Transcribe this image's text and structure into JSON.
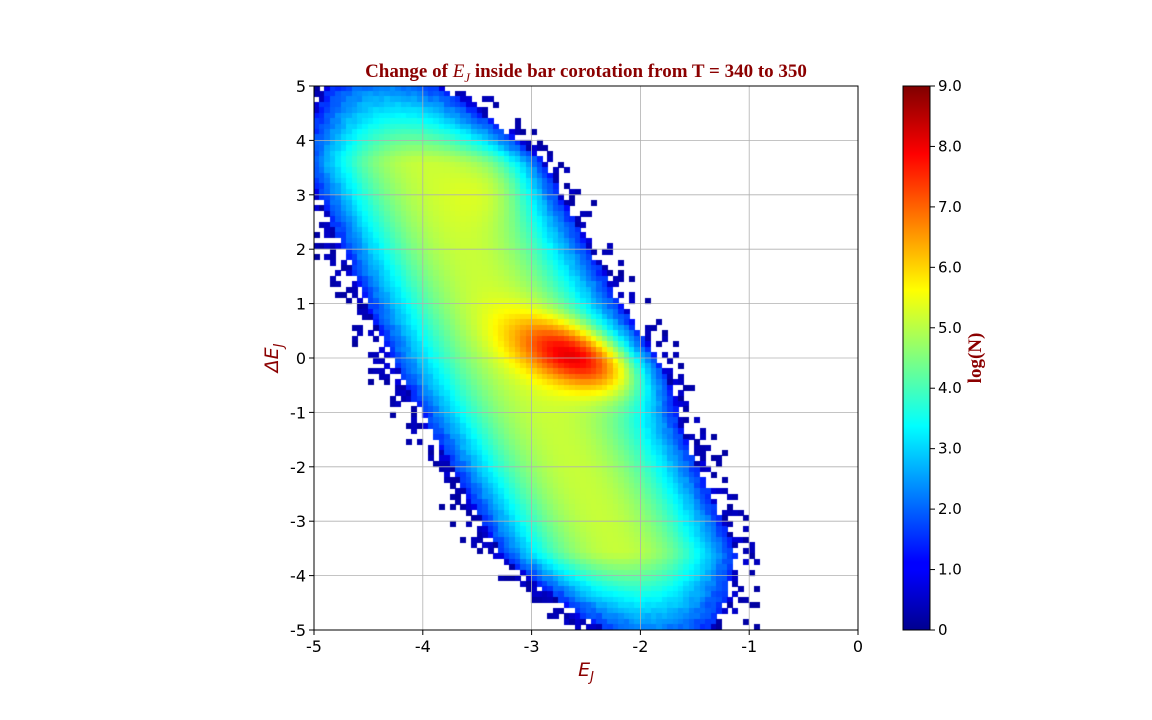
{
  "chart_data": {
    "type": "heatmap",
    "title_prefix": "Change of ",
    "title_var": "E",
    "title_sub": "J",
    "title_suffix": " inside bar corotation from T = 340 to 350",
    "xlabel_var": "E",
    "xlabel_sub": "J",
    "ylabel_var": "ΔE",
    "ylabel_sub": "J",
    "xlim": [
      -5,
      0
    ],
    "ylim": [
      -5,
      5
    ],
    "x_ticks": [
      "-5",
      "-4",
      "-3",
      "-2",
      "-1",
      "0"
    ],
    "y_ticks": [
      "-5",
      "-4",
      "-3",
      "-2",
      "-1",
      "0",
      "1",
      "2",
      "3",
      "4",
      "5"
    ],
    "grid": true,
    "colorbar": {
      "label": "log(N)",
      "range": [
        0,
        9
      ],
      "ticks": [
        "0",
        "1.0",
        "2.0",
        "3.0",
        "4.0",
        "5.0",
        "6.0",
        "7.0",
        "8.0",
        "9.0"
      ],
      "colormap": "jet"
    },
    "text_color": "#8b0000",
    "description_notes": {
      "peak": {
        "E_J": -2.6,
        "dE_J": 0.0,
        "logN": 8.8
      },
      "envelope": "tilted band from (E_J≈-4.2, ΔE_J≈4) down to (E_J≈-2, ΔE_J≈-4)"
    }
  }
}
